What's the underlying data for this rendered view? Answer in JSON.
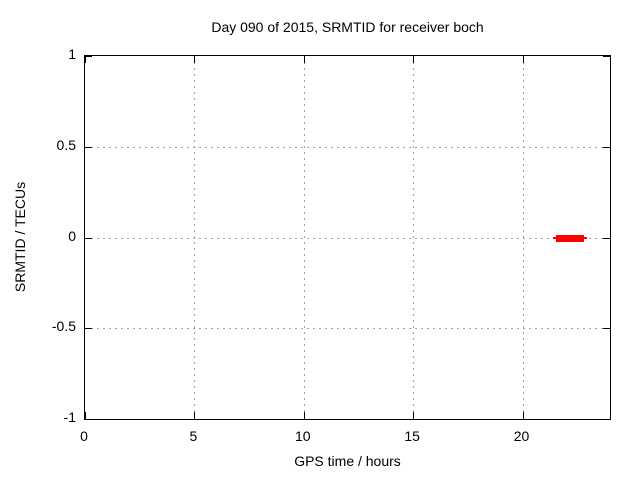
{
  "chart_data": {
    "type": "line",
    "title": "Day 090 of 2015, SRMTID for receiver boch",
    "xlabel": "GPS time / hours",
    "ylabel": "SRMTID / TECUs",
    "xlim": [
      0,
      24
    ],
    "ylim": [
      -1,
      1
    ],
    "grid": true,
    "legend": "none",
    "background_color": "#ffffff",
    "axis_color": "#000000",
    "grid_color": "#a0a0a0",
    "xticks": [
      {
        "value": 0,
        "label": "0"
      },
      {
        "value": 5,
        "label": "5"
      },
      {
        "value": 10,
        "label": "10"
      },
      {
        "value": 15,
        "label": "15"
      },
      {
        "value": 20,
        "label": "20"
      }
    ],
    "yticks": [
      {
        "value": -1,
        "label": "-1"
      },
      {
        "value": -0.5,
        "label": "-0.5"
      },
      {
        "value": 0,
        "label": "0"
      },
      {
        "value": 0.5,
        "label": "0.5"
      },
      {
        "value": 1,
        "label": "1"
      }
    ],
    "series": [
      {
        "name": "SRMTID",
        "color": "#ff0000",
        "style": "thick horizontal segment at constant y",
        "segments": [
          {
            "y": 0.0,
            "x_start": 21.55,
            "x_end": 22.8,
            "whisker_start": 21.4,
            "whisker_end": 22.95
          }
        ]
      }
    ]
  }
}
